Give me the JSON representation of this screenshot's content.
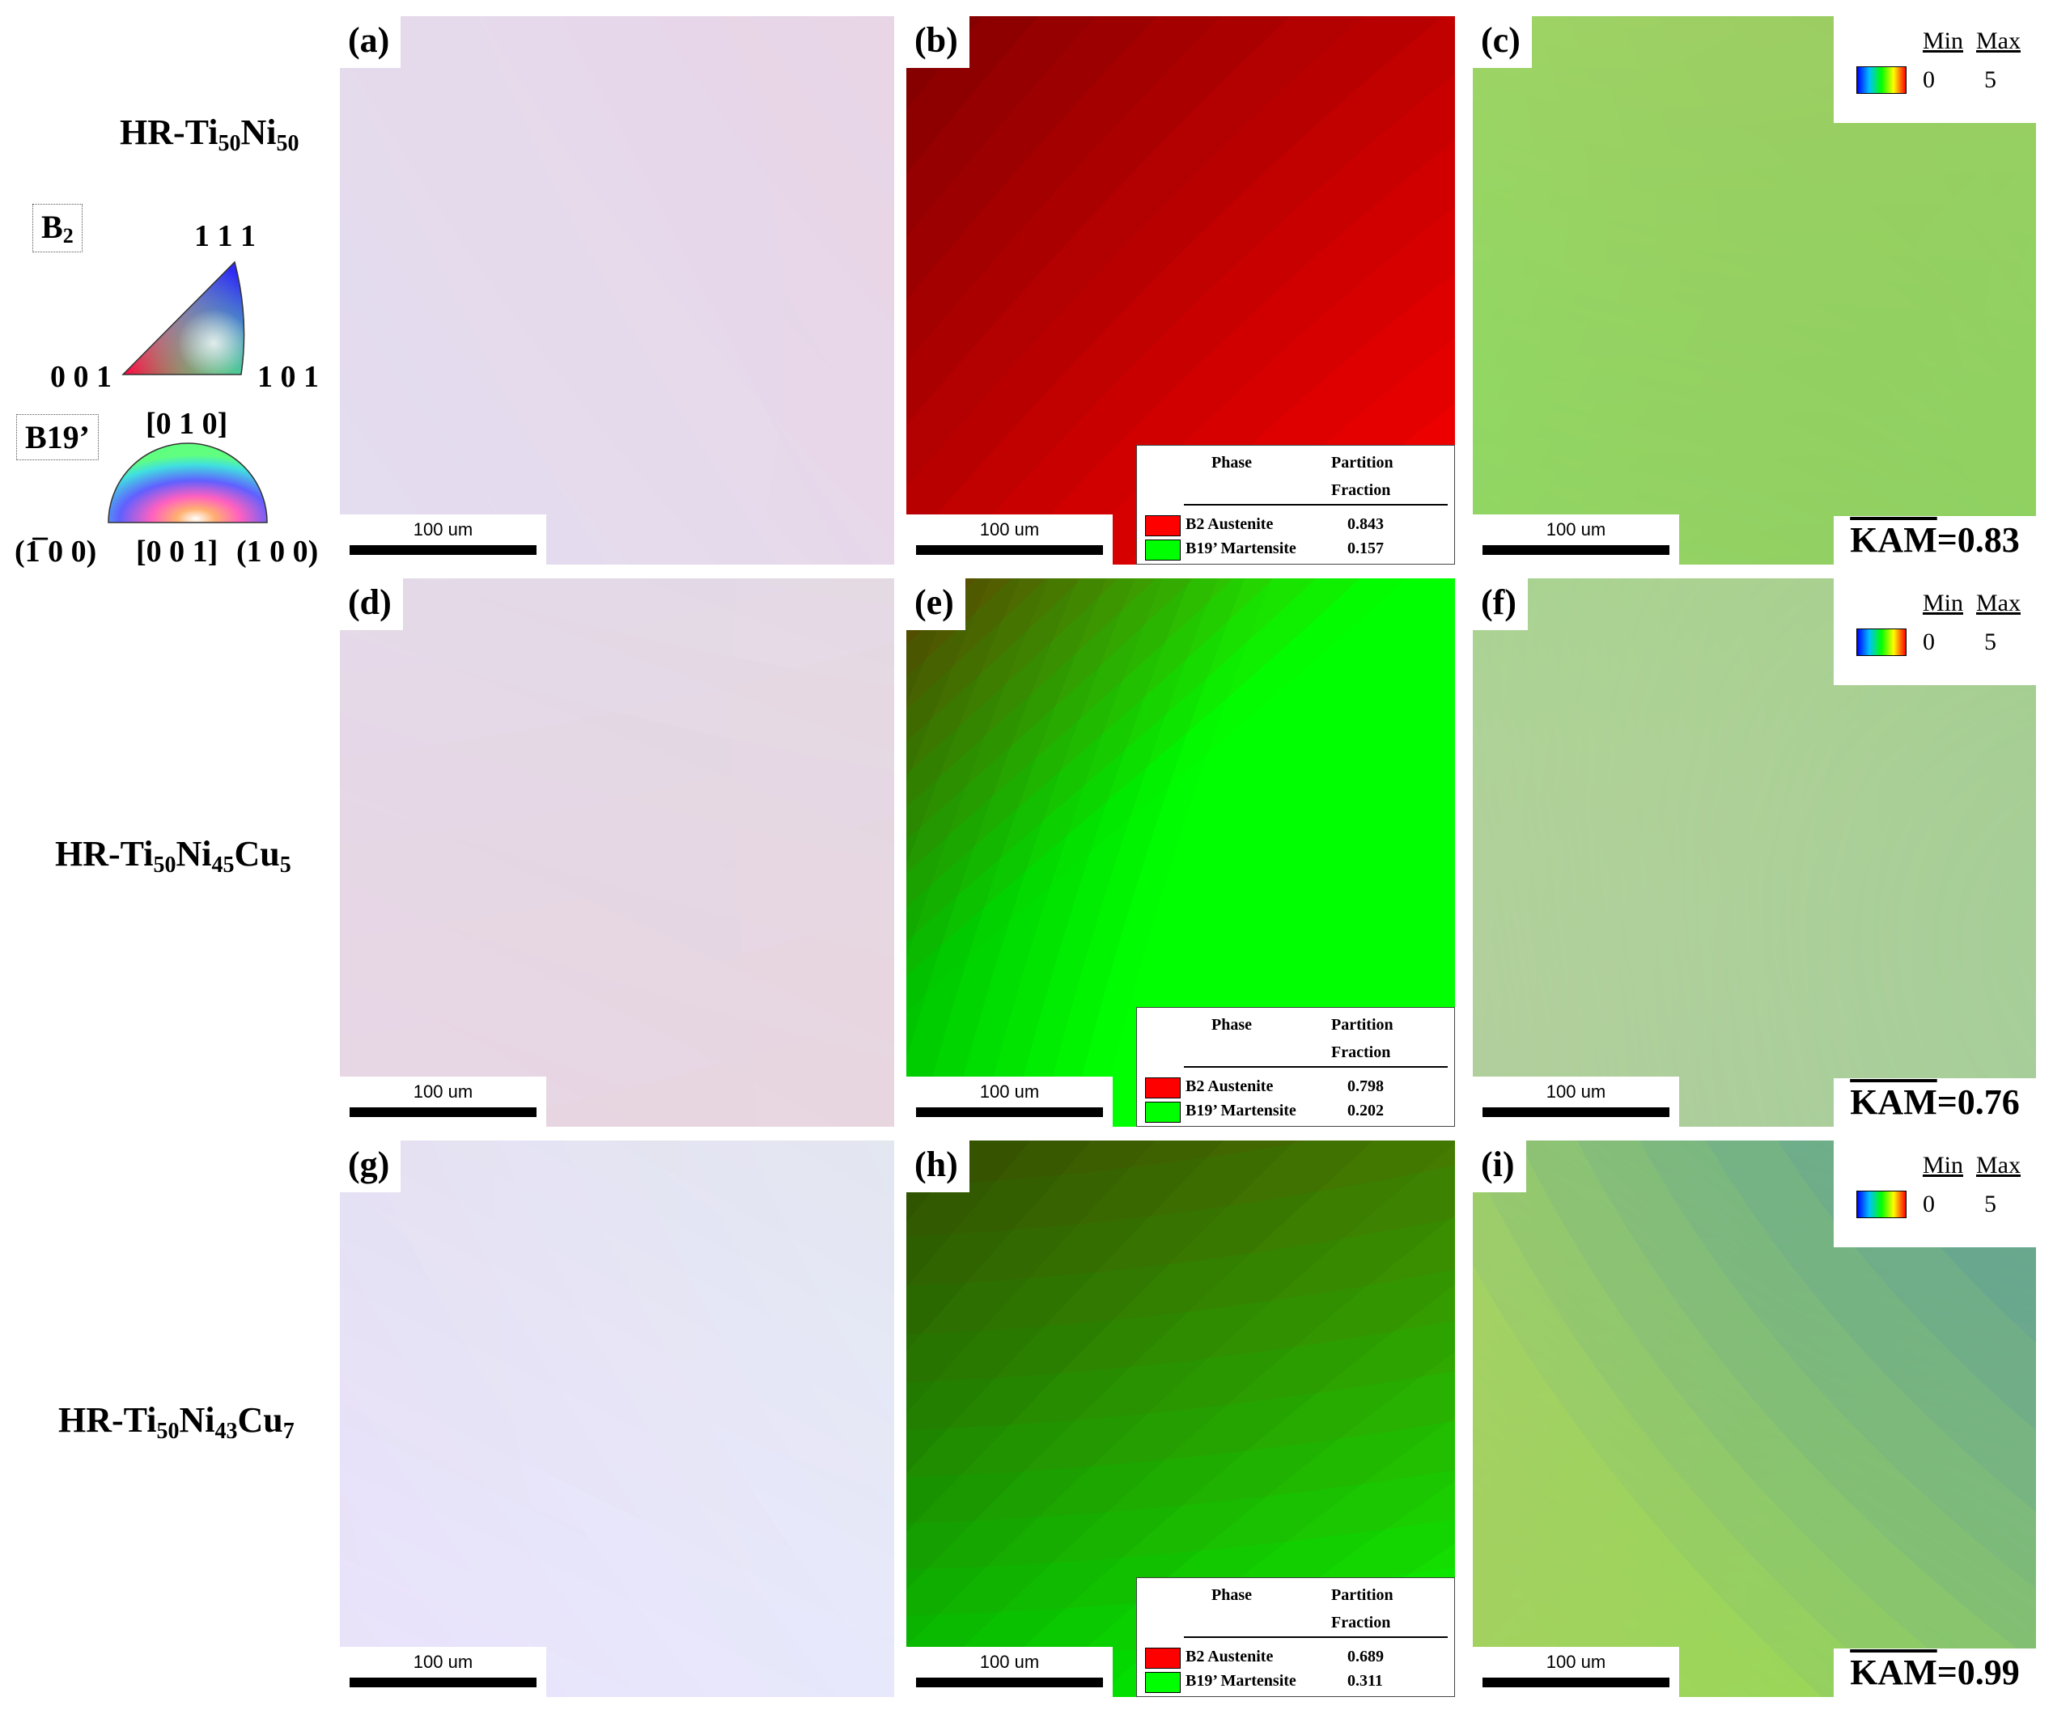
{
  "figure": {
    "panel_labels": [
      "(a)",
      "(b)",
      "(c)",
      "(d)",
      "(e)",
      "(f)",
      "(g)",
      "(h)",
      "(i)"
    ],
    "scale_bar_label": "100 um",
    "samples": [
      {
        "prefix": "HR-Ti",
        "sub1": "50",
        "mid": "Ni",
        "sub2": "50",
        "tail": "",
        "sub3": ""
      },
      {
        "prefix": "HR-Ti",
        "sub1": "50",
        "mid": "Ni",
        "sub2": "45",
        "tail": "Cu",
        "sub3": "5"
      },
      {
        "prefix": "HR-Ti",
        "sub1": "50",
        "mid": "Ni",
        "sub2": "43",
        "tail": "Cu",
        "sub3": "7"
      }
    ],
    "ipf_key": {
      "b2_label": "B",
      "b2_sub": "2",
      "b2_111": "1 1 1",
      "b2_001": "0 0 1",
      "b2_101": "1 0 1",
      "b19_label": "B19’",
      "b19_010": "[0 1 0]",
      "b19_m100": "(1̅ 0 0)",
      "b19_001": "[0 0 1]",
      "b19_100": "(1 0 0)"
    },
    "phase_legend": {
      "col_phase": "Phase",
      "col_partition": "Partition",
      "col_fraction": "Fraction",
      "austenite_label": "B2 Austenite",
      "martensite_label": "B19’ Martensite",
      "austenite_color": "#ff0000",
      "martensite_color": "#00ff00"
    },
    "phase_fractions": [
      {
        "austenite": "0.843",
        "martensite": "0.157"
      },
      {
        "austenite": "0.798",
        "martensite": "0.202"
      },
      {
        "austenite": "0.689",
        "martensite": "0.311"
      }
    ],
    "kam_legend": {
      "min_label": "Min",
      "max_label": "Max",
      "min_val": "0",
      "max_val": "5"
    },
    "kam_label": "KAM",
    "kam_values": [
      "=0.83",
      "=0.76",
      "=0.99"
    ]
  }
}
